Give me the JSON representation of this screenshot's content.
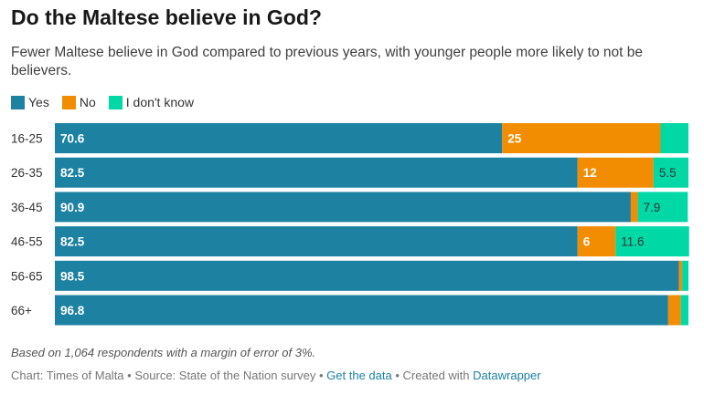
{
  "header": {
    "title": "Do the Maltese believe in God?",
    "subtitle": "Fewer Maltese believe in God compared to previous years, with younger people more likely to not be believers."
  },
  "legend": [
    {
      "label": "Yes",
      "color": "#1d81a2"
    },
    {
      "label": "No",
      "color": "#f28c00"
    },
    {
      "label": "I don't know",
      "color": "#00d9a6"
    }
  ],
  "chart_data": {
    "type": "bar",
    "orientation": "horizontal-stacked",
    "categories": [
      "16-25",
      "26-35",
      "36-45",
      "46-55",
      "56-65",
      "66+"
    ],
    "series": [
      {
        "name": "Yes",
        "color": "#1d81a2",
        "values": [
          70.6,
          82.5,
          90.9,
          82.5,
          98.5,
          96.8
        ],
        "labels": [
          "70.6",
          "82.5",
          "90.9",
          "82.5",
          "98.5",
          "96.8"
        ]
      },
      {
        "name": "No",
        "color": "#f28c00",
        "values": [
          25,
          12,
          1.1,
          6,
          0.5,
          2
        ],
        "labels": [
          "25",
          "12",
          "",
          "6",
          "",
          ""
        ]
      },
      {
        "name": "I don't know",
        "color": "#00d9a6",
        "values": [
          4.4,
          5.5,
          7.9,
          11.6,
          1,
          1.2
        ],
        "labels": [
          "",
          "5.5",
          "7.9",
          "11.6",
          "",
          ""
        ]
      }
    ],
    "xlim": [
      0,
      100
    ],
    "legend_position": "top-left",
    "grid": false
  },
  "notes": "Based on 1,064 respondents with a margin of error of 3%.",
  "footer": {
    "chart_prefix": "Chart: Times of Malta",
    "source_text": "Source: State of the Nation survey",
    "get_data_link": "Get the data",
    "created_with": "Created with",
    "datawrapper_link": "Datawrapper",
    "separator": "•"
  }
}
